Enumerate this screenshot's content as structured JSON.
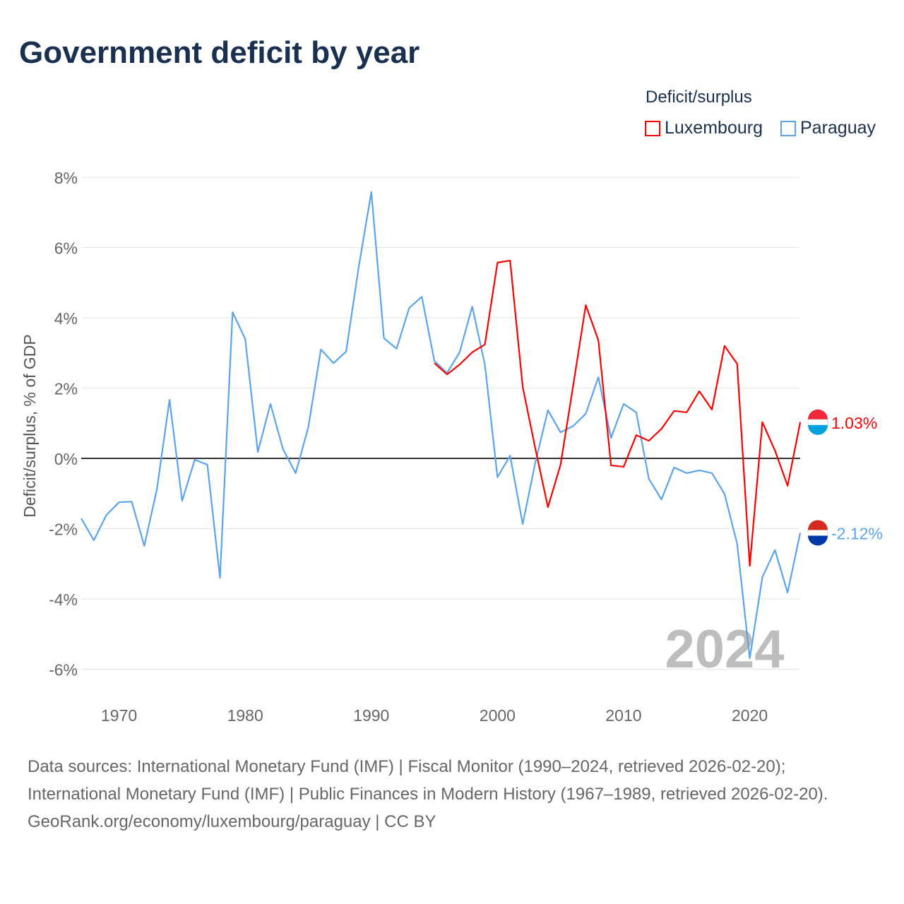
{
  "title": "Government deficit by year",
  "legend": {
    "title": "Deficit/surplus",
    "items": [
      {
        "name": "Luxembourg",
        "color": "#ff0000"
      },
      {
        "name": "Paraguay",
        "color": "#5aa4ec"
      }
    ]
  },
  "year_watermark": "2024",
  "footer": {
    "sources": "Data sources: International Monetary Fund (IMF) | Fiscal Monitor (1990–2024, retrieved 2026-02-20); International Monetary Fund (IMF) | Public Finances in Modern History (1967–1989, retrieved 2026-02-20).",
    "credit": "GeoRank.org/economy/luxembourg/paraguay | CC BY"
  },
  "chart_data": {
    "type": "line",
    "title": "Government deficit by year",
    "ylabel": "Deficit/surplus, % of GDP",
    "ylim": [
      -6.8,
      8.4
    ],
    "xlim": [
      1967,
      2024
    ],
    "yticks": [
      8,
      6,
      4,
      2,
      0,
      -2,
      -4,
      -6
    ],
    "ytick_labels": [
      "8%",
      "6%",
      "4%",
      "2%",
      "0%",
      "-2%",
      "-4%",
      "-6%"
    ],
    "xticks": [
      1970,
      1980,
      1990,
      2000,
      2010,
      2020
    ],
    "xtick_labels": [
      "1970",
      "1980",
      "1990",
      "2000",
      "2010",
      "2020"
    ],
    "series": [
      {
        "name": "Luxembourg",
        "color": "#ff0000",
        "end_label": "1.03%",
        "x_start": 1995,
        "values": [
          2.71,
          2.39,
          2.67,
          3.02,
          3.24,
          5.57,
          5.63,
          2.03,
          0.28,
          -1.39,
          -0.18,
          2.07,
          4.36,
          3.36,
          -0.2,
          -0.24,
          0.66,
          0.5,
          0.84,
          1.35,
          1.31,
          1.91,
          1.39,
          3.2,
          2.69,
          -3.06,
          1.03,
          0.22,
          -0.78,
          1.03
        ]
      },
      {
        "name": "Paraguay",
        "color": "#5aa4ec",
        "end_label": "-2.12%",
        "x_start": 1967,
        "values": [
          -1.71,
          -2.33,
          -1.61,
          -1.25,
          -1.23,
          -2.49,
          -0.88,
          1.67,
          -1.21,
          -0.04,
          -0.18,
          -3.4,
          4.16,
          3.4,
          0.18,
          1.55,
          0.26,
          -0.42,
          0.88,
          3.1,
          2.71,
          3.04,
          5.45,
          7.58,
          3.42,
          3.12,
          4.28,
          4.6,
          2.77,
          2.43,
          3.02,
          4.32,
          2.67,
          -0.54,
          0.08,
          -1.87,
          -0.12,
          1.37,
          0.74,
          0.92,
          1.27,
          2.31,
          0.58,
          1.55,
          1.31,
          -0.58,
          -1.17,
          -0.26,
          -0.42,
          -0.34,
          -0.42,
          -1.01,
          -2.43,
          -5.69,
          -3.38,
          -2.61,
          -3.82,
          -2.12
        ]
      }
    ]
  }
}
